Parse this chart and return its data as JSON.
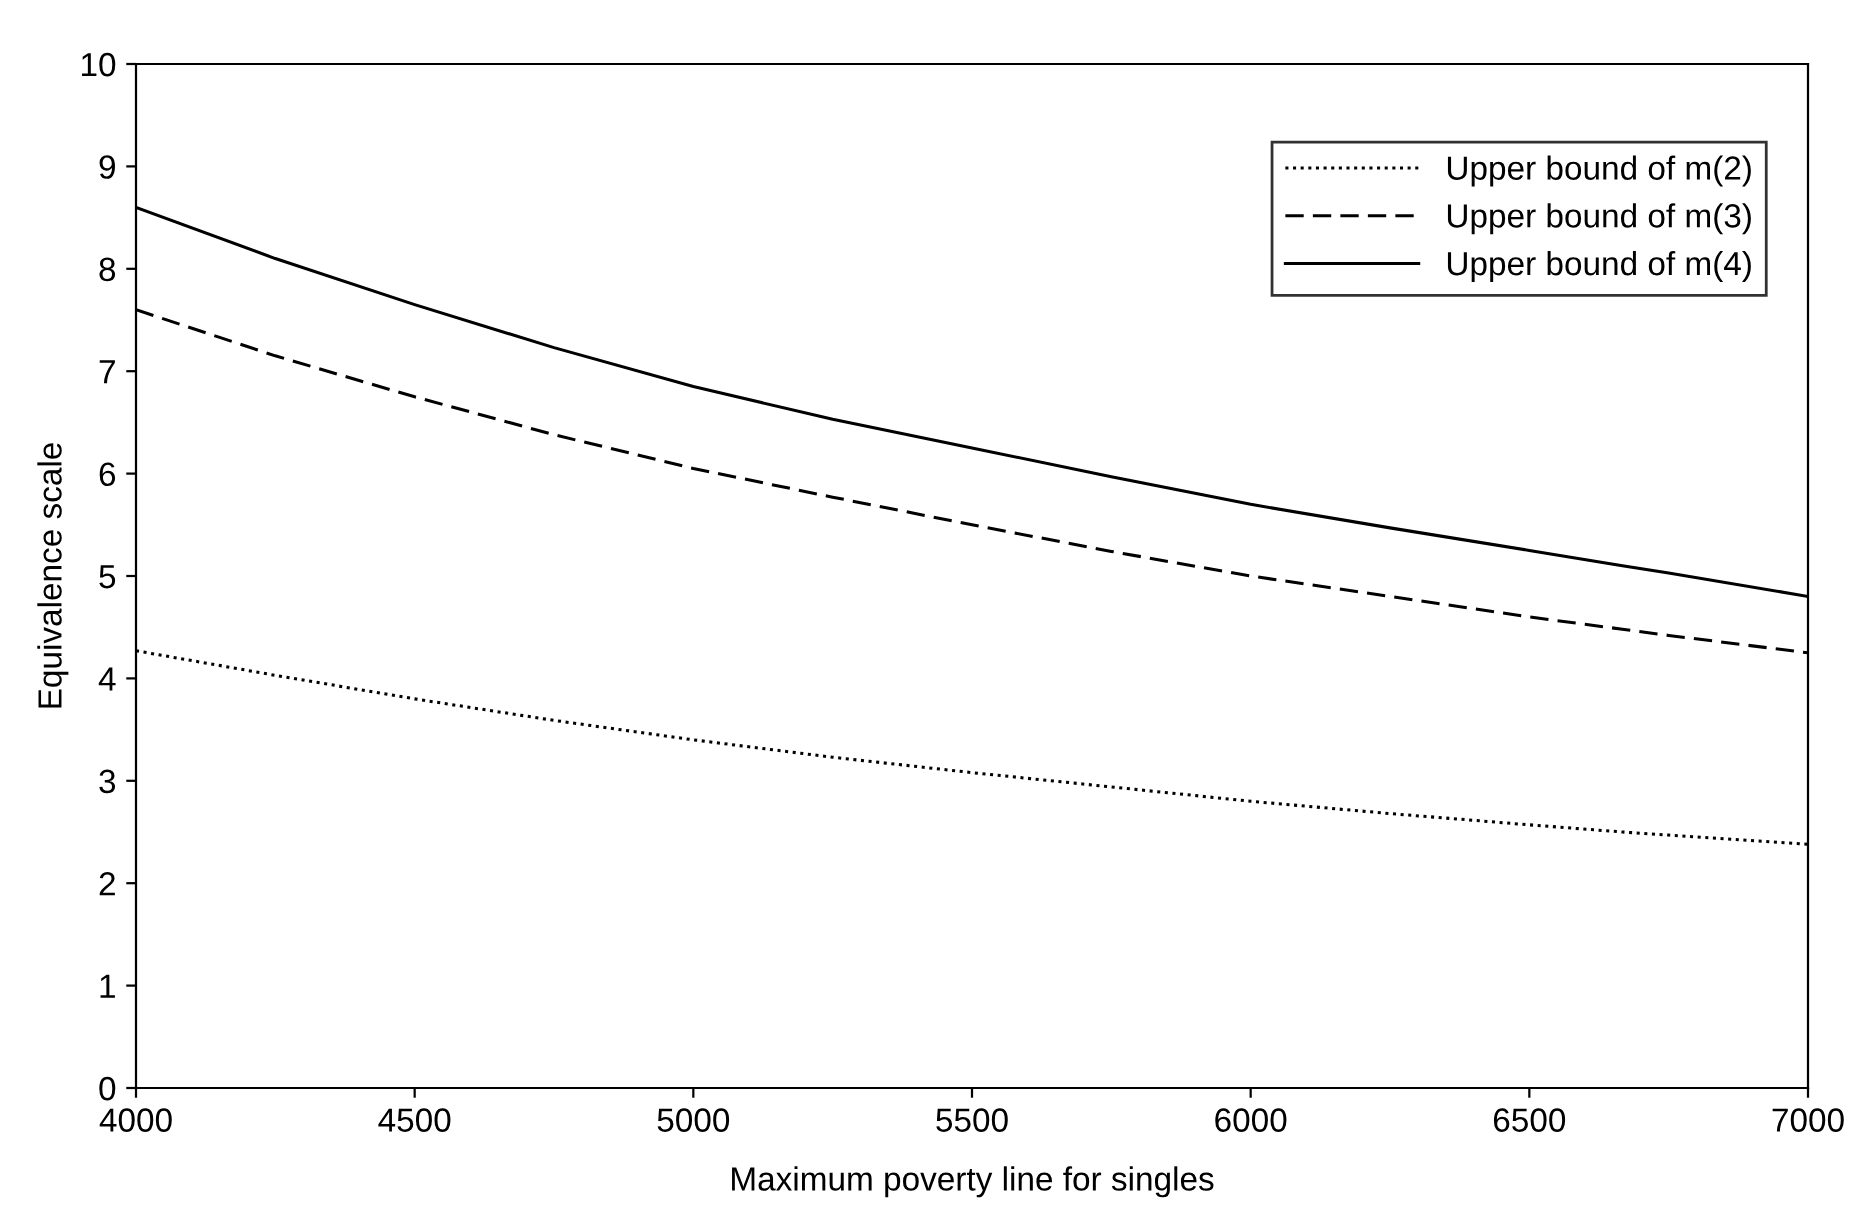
{
  "chart_data": {
    "type": "line",
    "xlabel": "Maximum poverty line for singles",
    "ylabel": "Equivalence scale",
    "x": [
      4000,
      4250,
      4500,
      4750,
      5000,
      5250,
      5500,
      5750,
      6000,
      6250,
      6500,
      6667,
      6750,
      7000
    ],
    "series": [
      {
        "name": "Upper bound of m(2)",
        "color": "#000000",
        "line_style": "dotted",
        "values": [
          4.27,
          4.03,
          3.8,
          3.59,
          3.4,
          3.23,
          3.08,
          2.94,
          2.8,
          2.68,
          2.57,
          2.5,
          2.47,
          2.38
        ]
      },
      {
        "name": "Upper bound of m(3)",
        "color": "#000000",
        "line_style": "dashed",
        "values": [
          7.6,
          7.15,
          6.75,
          6.38,
          6.05,
          5.77,
          5.5,
          5.24,
          5.0,
          4.8,
          4.6,
          4.48,
          4.42,
          4.25
        ]
      },
      {
        "name": "Upper bound of m(4)",
        "color": "#000000",
        "line_style": "solid",
        "values": [
          8.6,
          8.1,
          7.65,
          7.23,
          6.85,
          6.53,
          6.25,
          5.97,
          5.7,
          5.47,
          5.25,
          5.1,
          5.03,
          4.8
        ]
      }
    ],
    "xlim": [
      4000,
      7000
    ],
    "xticks": [
      4000,
      4500,
      5000,
      5500,
      6000,
      6500,
      7000
    ],
    "ylim": [
      0,
      10
    ],
    "yticks": [
      0,
      1,
      2,
      3,
      4,
      5,
      6,
      7,
      8,
      9,
      10
    ],
    "grid": false,
    "legend": "top right",
    "marker": "none"
  }
}
